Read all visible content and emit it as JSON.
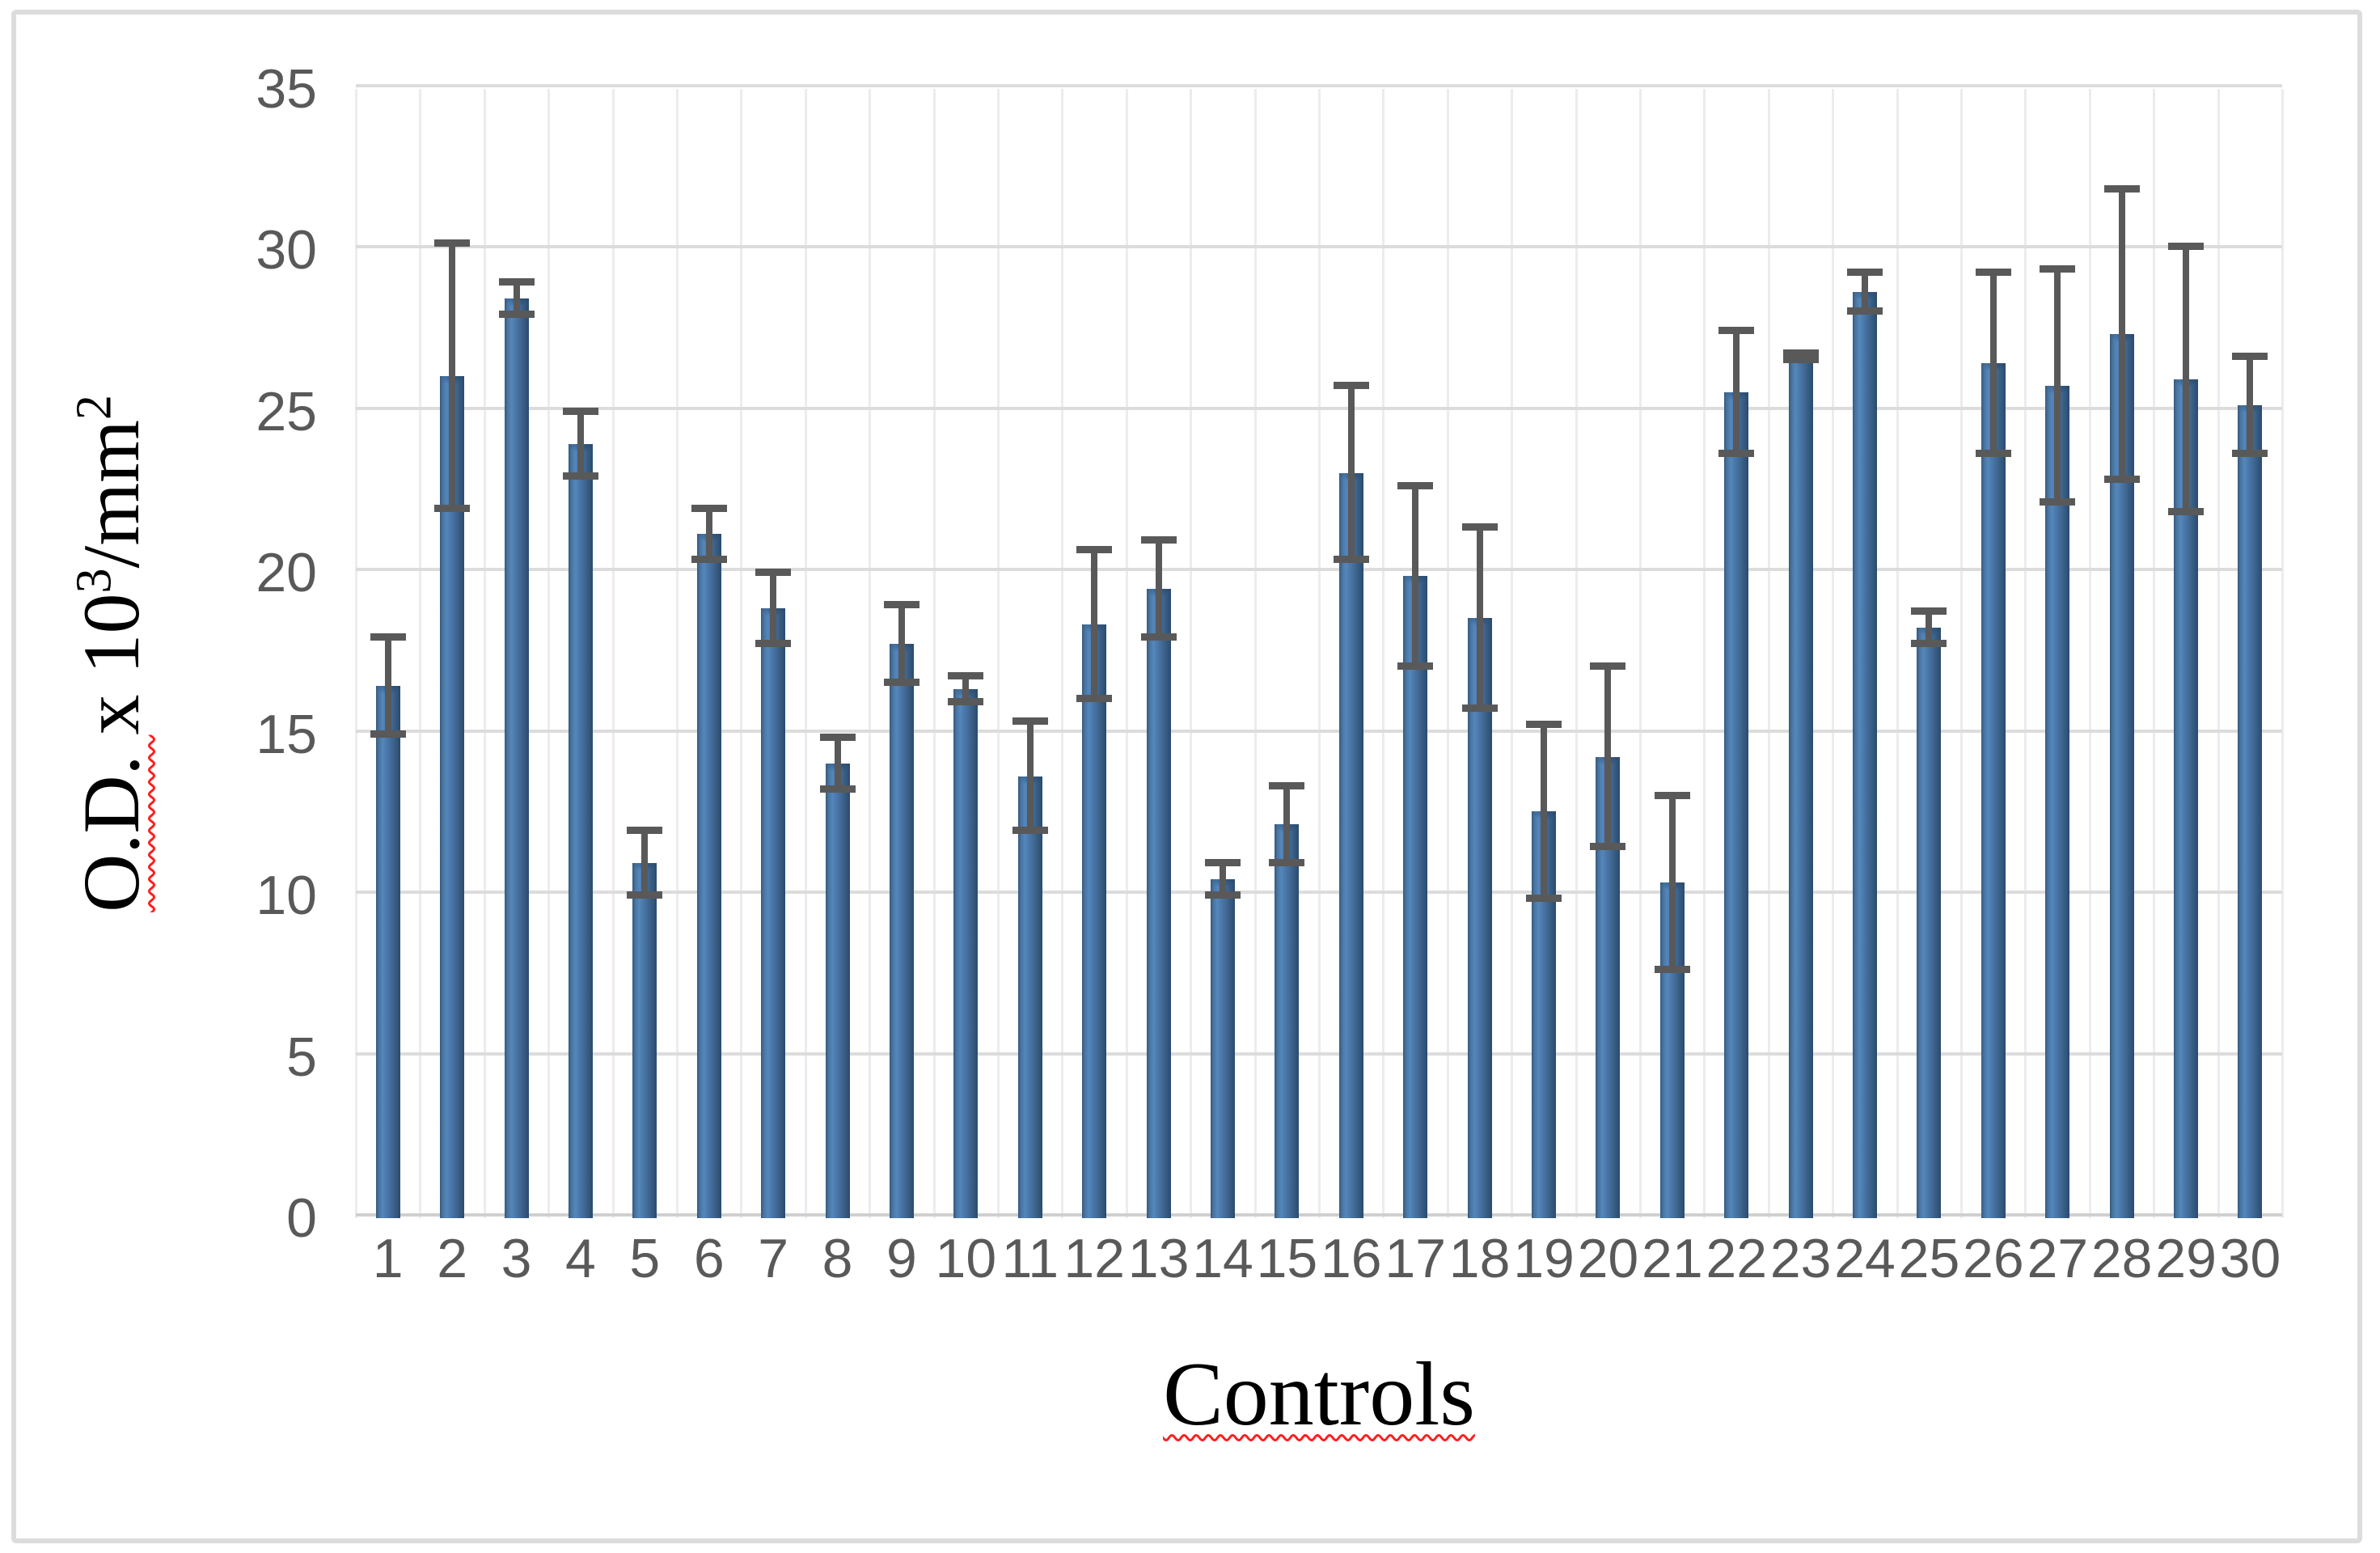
{
  "chart_data": {
    "type": "bar",
    "title": "",
    "xlabel": "Controls",
    "ylabel": "O.D. x 10³/mm²",
    "ylabel_parts": [
      {
        "text": "O.D. ",
        "sup": false,
        "squiggle": true
      },
      {
        "text": "x 10",
        "sup": false,
        "squiggle": false
      },
      {
        "text": "3",
        "sup": true,
        "squiggle": false
      },
      {
        "text": "/mm",
        "sup": false,
        "squiggle": false
      },
      {
        "text": "2",
        "sup": true,
        "squiggle": false
      }
    ],
    "categories": [
      "1",
      "2",
      "3",
      "4",
      "5",
      "6",
      "7",
      "8",
      "9",
      "10",
      "11",
      "12",
      "13",
      "14",
      "15",
      "16",
      "17",
      "18",
      "19",
      "20",
      "21",
      "22",
      "23",
      "24",
      "25",
      "26",
      "27",
      "28",
      "29",
      "30"
    ],
    "values": [
      16.5,
      26.1,
      28.5,
      24.0,
      11.0,
      21.2,
      18.9,
      14.1,
      17.8,
      16.4,
      13.7,
      18.4,
      19.5,
      10.5,
      12.2,
      23.1,
      19.9,
      18.6,
      12.6,
      14.3,
      10.4,
      25.6,
      26.7,
      28.7,
      18.3,
      26.5,
      25.8,
      27.4,
      26.0,
      25.2
    ],
    "errors": [
      1.5,
      4.1,
      0.5,
      1.0,
      1.0,
      0.8,
      1.1,
      0.8,
      1.2,
      0.4,
      1.7,
      2.3,
      1.5,
      0.5,
      1.2,
      2.7,
      2.8,
      2.8,
      2.7,
      2.8,
      2.7,
      1.9,
      0.1,
      0.6,
      0.5,
      2.8,
      3.6,
      4.5,
      4.1,
      1.5
    ],
    "yticks": [
      0,
      5,
      10,
      15,
      20,
      25,
      30,
      35
    ],
    "ylim": [
      0,
      35
    ],
    "grid": {
      "horizontal": true,
      "vertical": true
    },
    "legend": "none",
    "error_bars": "both",
    "colors": {
      "bar_main": "#4f81bd",
      "bar_edge_dark": "#2a4b6e",
      "bar_highlight": "#5486bd",
      "error_bar": "#595959",
      "gridline": "#dcdcdc",
      "vertical_gridline": "#ececec",
      "tick_label": "#595959",
      "axis_title": "#000000",
      "spellcheck_underline": "#ff1f1f",
      "chart_border": "#dcdcdc",
      "background": "#ffffff"
    }
  }
}
